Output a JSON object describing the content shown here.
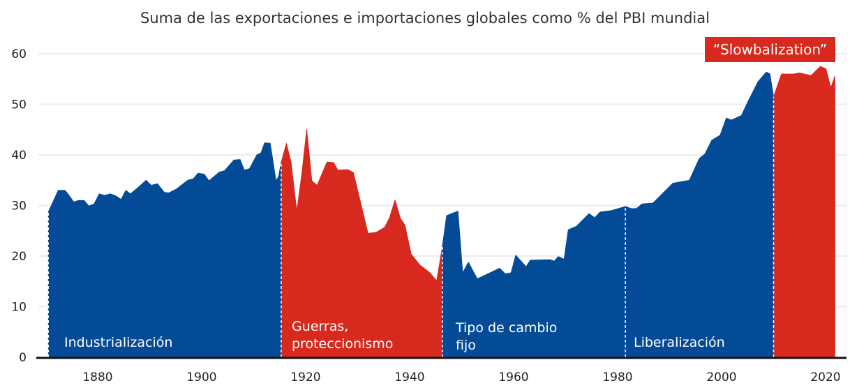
{
  "chart_data": {
    "type": "area",
    "title": "Suma de las exportaciones e importaciones globales como % del PBI mundial",
    "xlabel": "",
    "ylabel": "",
    "ylim": [
      0,
      60
    ],
    "xlim": [
      1870,
      2022
    ],
    "yticks": [
      0,
      10,
      20,
      30,
      40,
      50,
      60
    ],
    "xticks": [
      1880,
      1900,
      1920,
      1940,
      1960,
      1980,
      2000,
      2020
    ],
    "grid": true,
    "colors": {
      "blue": "#034b96",
      "red": "#d7291e"
    },
    "annotation": "“Slowbalization”",
    "segments": [
      {
        "name": "Industrialización",
        "color": "blue",
        "points": [
          [
            1870.5,
            28.7
          ],
          [
            1872.4,
            33
          ],
          [
            1873.7,
            33
          ],
          [
            1874.2,
            32.4
          ],
          [
            1875.4,
            30.7
          ],
          [
            1876.3,
            31
          ],
          [
            1877.4,
            31
          ],
          [
            1878.3,
            29.9
          ],
          [
            1879.3,
            30.3
          ],
          [
            1880.3,
            32.3
          ],
          [
            1881.3,
            32
          ],
          [
            1882.4,
            32.3
          ],
          [
            1883.5,
            31.9
          ],
          [
            1884.5,
            31.2
          ],
          [
            1885.4,
            33
          ],
          [
            1886.3,
            32.3
          ],
          [
            1887.7,
            33.5
          ],
          [
            1889.3,
            35
          ],
          [
            1890.3,
            34
          ],
          [
            1891.5,
            34.3
          ],
          [
            1892.8,
            32.6
          ],
          [
            1893.7,
            32.5
          ],
          [
            1895.2,
            33.3
          ],
          [
            1897.3,
            35
          ],
          [
            1898.4,
            35.3
          ],
          [
            1899.3,
            36.4
          ],
          [
            1900.5,
            36.2
          ],
          [
            1901.4,
            34.9
          ],
          [
            1903.4,
            36.6
          ],
          [
            1904.4,
            36.9
          ],
          [
            1906.2,
            39
          ],
          [
            1907.4,
            39.1
          ],
          [
            1908.2,
            37
          ],
          [
            1909.2,
            37.3
          ],
          [
            1910.6,
            40
          ],
          [
            1911.4,
            40.4
          ],
          [
            1912.1,
            42.4
          ],
          [
            1913.2,
            42.3
          ],
          [
            1914.3,
            34.9
          ],
          [
            1914.8,
            35.8
          ],
          [
            1915.3,
            38.6
          ]
        ]
      },
      {
        "name": "Guerras, proteccionismo",
        "color": "red",
        "points": [
          [
            1915.3,
            38.6
          ],
          [
            1916.3,
            42.3
          ],
          [
            1917.2,
            38.6
          ],
          [
            1918.3,
            28.9
          ],
          [
            1919.3,
            36.7
          ],
          [
            1920.2,
            45.1
          ],
          [
            1921.2,
            34.9
          ],
          [
            1922.2,
            34
          ],
          [
            1924.1,
            38.6
          ],
          [
            1925.4,
            38.5
          ],
          [
            1926.2,
            37
          ],
          [
            1928.1,
            37.1
          ],
          [
            1929.2,
            36.5
          ],
          [
            1932,
            24.5
          ],
          [
            1933.6,
            24.7
          ],
          [
            1935.2,
            25.7
          ],
          [
            1936.1,
            27.5
          ],
          [
            1937.2,
            31.1
          ],
          [
            1938.2,
            27.5
          ],
          [
            1939.1,
            26.1
          ],
          [
            1940.3,
            20.4
          ],
          [
            1941.9,
            18.3
          ],
          [
            1943.9,
            16.7
          ],
          [
            1945.2,
            15.1
          ],
          [
            1946.3,
            22
          ]
        ]
      },
      {
        "name": "Tipo de cambio fijo",
        "color": "blue",
        "points": [
          [
            1946.3,
            22
          ],
          [
            1947.1,
            28
          ],
          [
            1949.3,
            28.9
          ],
          [
            1950.2,
            16.7
          ],
          [
            1951.3,
            18.8
          ],
          [
            1953,
            15.5
          ],
          [
            1957.3,
            17.6
          ],
          [
            1958.4,
            16.5
          ],
          [
            1959.5,
            16.7
          ],
          [
            1960.4,
            20.2
          ],
          [
            1962.4,
            17.9
          ],
          [
            1963.2,
            19.2
          ],
          [
            1967,
            19.3
          ],
          [
            1967.8,
            19
          ],
          [
            1968.6,
            19.9
          ],
          [
            1969.7,
            19.4
          ],
          [
            1970.5,
            25.2
          ],
          [
            1972.1,
            25.9
          ],
          [
            1974.5,
            28.4
          ],
          [
            1975.6,
            27.6
          ],
          [
            1976.6,
            28.7
          ],
          [
            1978.8,
            29
          ],
          [
            1981.5,
            29.8
          ]
        ]
      },
      {
        "name": "Liberalización",
        "color": "blue",
        "points": [
          [
            1981.5,
            29.8
          ],
          [
            1982.6,
            29.4
          ],
          [
            1983.6,
            29.4
          ],
          [
            1984.7,
            30.3
          ],
          [
            1986.8,
            30.5
          ],
          [
            1990.6,
            34.4
          ],
          [
            1993.8,
            35
          ],
          [
            1995.7,
            39.3
          ],
          [
            1996.8,
            40.2
          ],
          [
            1998.1,
            42.9
          ],
          [
            1999.7,
            43.9
          ],
          [
            2000.9,
            47.3
          ],
          [
            2001.9,
            46.9
          ],
          [
            2003.8,
            47.8
          ],
          [
            2005.1,
            50.6
          ],
          [
            2007,
            54.5
          ],
          [
            2008.6,
            56.4
          ],
          [
            2009.3,
            56
          ],
          [
            2010,
            51.5
          ]
        ]
      },
      {
        "name": "Slowbalization",
        "color": "red",
        "points": [
          [
            2010,
            51.5
          ],
          [
            2011.5,
            56
          ],
          [
            2013.7,
            56
          ],
          [
            2015,
            56.2
          ],
          [
            2017.2,
            55.7
          ],
          [
            2019,
            57.5
          ],
          [
            2020.1,
            57
          ],
          [
            2021,
            53.3
          ],
          [
            2021.8,
            55.6
          ]
        ]
      }
    ],
    "dividers": [
      1870.5,
      1915.3,
      1946.3,
      1981.5,
      2010
    ],
    "region_labels": {
      "industrializacion": "Industrialización",
      "guerras_1": "Guerras,",
      "guerras_2": "proteccionismo",
      "tipo_1": "Tipo de cambio",
      "tipo_2": "fijo",
      "liberalizacion": "Liberalización"
    }
  }
}
